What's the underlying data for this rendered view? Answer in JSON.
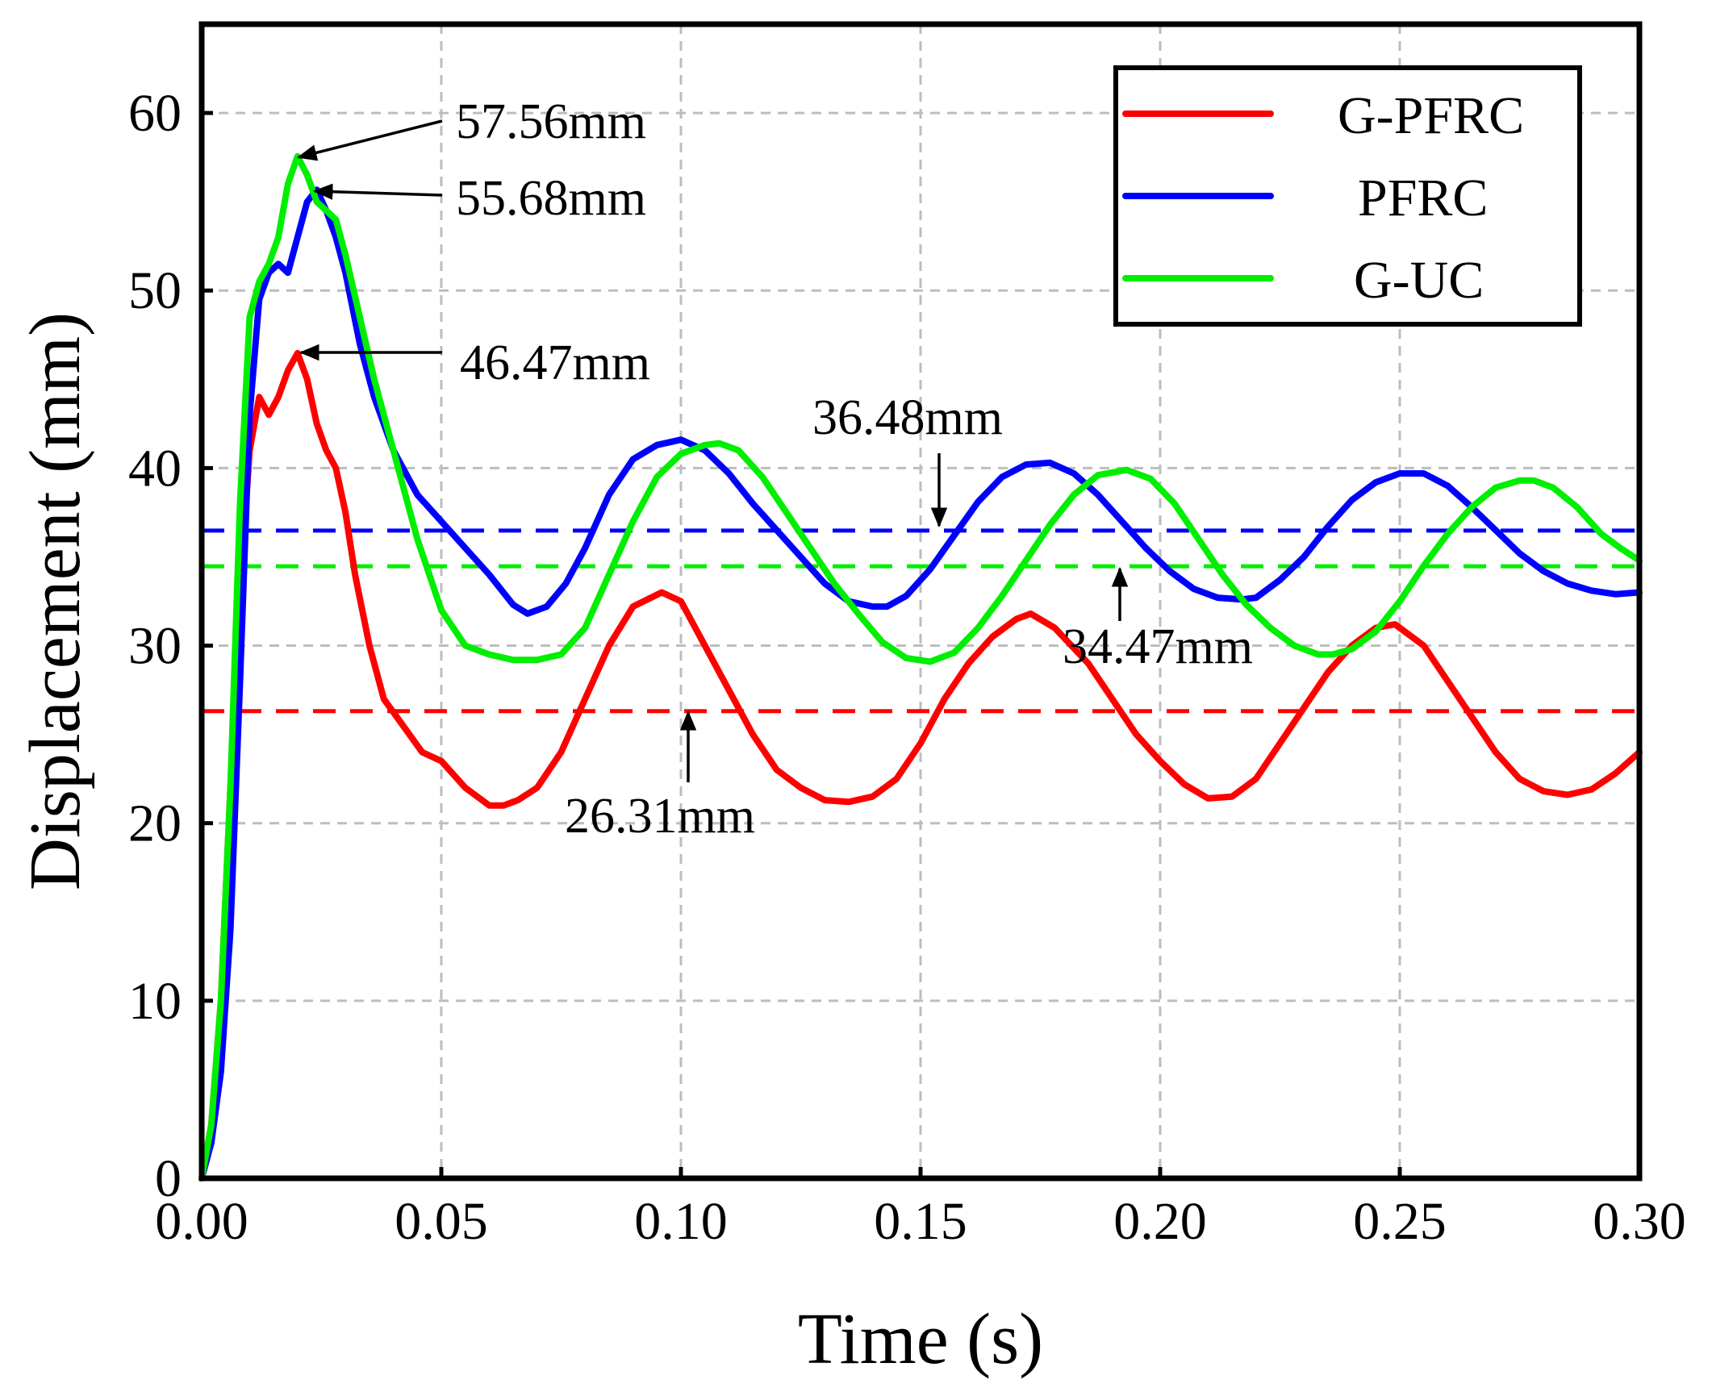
{
  "chart_data": {
    "type": "line",
    "xlabel": "Time (s)",
    "ylabel": "Displacement (mm)",
    "xlim": [
      0,
      0.3
    ],
    "ylim": [
      0,
      65
    ],
    "xticks": [
      0,
      0.05,
      0.1,
      0.15,
      0.2,
      0.25,
      0.3
    ],
    "xtick_labels": [
      "0.00",
      "0.05",
      "0.10",
      "0.15",
      "0.20",
      "0.25",
      "0.30"
    ],
    "yticks": [
      0,
      10,
      20,
      30,
      40,
      50,
      60
    ],
    "ytick_labels": [
      "0",
      "10",
      "20",
      "30",
      "40",
      "50",
      "60"
    ],
    "grid": true,
    "legend_position": "top-right",
    "series": [
      {
        "name": "G-PFRC",
        "color": "#ff0000",
        "x": [
          0,
          0.002,
          0.004,
          0.006,
          0.008,
          0.01,
          0.012,
          0.014,
          0.016,
          0.018,
          0.02,
          0.022,
          0.024,
          0.026,
          0.028,
          0.03,
          0.032,
          0.035,
          0.038,
          0.042,
          0.046,
          0.05,
          0.055,
          0.06,
          0.063,
          0.066,
          0.07,
          0.075,
          0.08,
          0.085,
          0.09,
          0.096,
          0.1,
          0.105,
          0.11,
          0.115,
          0.12,
          0.125,
          0.13,
          0.135,
          0.14,
          0.145,
          0.15,
          0.155,
          0.16,
          0.165,
          0.17,
          0.173,
          0.178,
          0.185,
          0.19,
          0.195,
          0.2,
          0.205,
          0.21,
          0.215,
          0.22,
          0.225,
          0.23,
          0.235,
          0.24,
          0.245,
          0.249,
          0.255,
          0.26,
          0.265,
          0.27,
          0.275,
          0.28,
          0.285,
          0.29,
          0.295,
          0.3
        ],
        "y": [
          0,
          3,
          10,
          22,
          33,
          41,
          44,
          43,
          44,
          45.5,
          46.47,
          45,
          42.5,
          41,
          40,
          37.5,
          34,
          30,
          27,
          25.5,
          24,
          23.5,
          22,
          21,
          21,
          21.3,
          22,
          24,
          27,
          30,
          32.2,
          33,
          32.5,
          30,
          27.5,
          25,
          23,
          22,
          21.3,
          21.2,
          21.5,
          22.5,
          24.5,
          27,
          29,
          30.5,
          31.5,
          31.8,
          31,
          29,
          27,
          25,
          23.5,
          22.2,
          21.4,
          21.5,
          22.5,
          24.5,
          26.5,
          28.5,
          30,
          31,
          31.2,
          30,
          28,
          26,
          24,
          22.5,
          21.8,
          21.6,
          21.9,
          22.8,
          24
        ]
      },
      {
        "name": "PFRC",
        "color": "#0000ff",
        "x": [
          0,
          0.002,
          0.004,
          0.006,
          0.008,
          0.01,
          0.012,
          0.014,
          0.016,
          0.018,
          0.02,
          0.022,
          0.024,
          0.026,
          0.028,
          0.03,
          0.033,
          0.036,
          0.04,
          0.045,
          0.05,
          0.055,
          0.06,
          0.065,
          0.068,
          0.072,
          0.076,
          0.08,
          0.085,
          0.09,
          0.095,
          0.1,
          0.105,
          0.11,
          0.115,
          0.12,
          0.125,
          0.13,
          0.135,
          0.14,
          0.143,
          0.147,
          0.152,
          0.157,
          0.162,
          0.167,
          0.172,
          0.177,
          0.182,
          0.187,
          0.192,
          0.197,
          0.202,
          0.207,
          0.212,
          0.217,
          0.22,
          0.225,
          0.23,
          0.235,
          0.24,
          0.245,
          0.25,
          0.255,
          0.26,
          0.265,
          0.27,
          0.275,
          0.28,
          0.285,
          0.29,
          0.295,
          0.3
        ],
        "y": [
          0,
          2,
          6,
          14,
          28,
          43,
          49.5,
          51,
          51.5,
          51,
          53,
          55,
          55.68,
          54.5,
          53,
          51,
          47,
          44,
          41,
          38.5,
          37,
          35.5,
          34,
          32.3,
          31.8,
          32.2,
          33.5,
          35.5,
          38.5,
          40.5,
          41.3,
          41.6,
          41,
          39.7,
          38,
          36.5,
          35,
          33.5,
          32.5,
          32.2,
          32.2,
          32.8,
          34.3,
          36.2,
          38.1,
          39.5,
          40.2,
          40.3,
          39.7,
          38.5,
          37,
          35.5,
          34.2,
          33.2,
          32.7,
          32.6,
          32.7,
          33.7,
          35,
          36.7,
          38.2,
          39.2,
          39.7,
          39.7,
          39,
          37.8,
          36.5,
          35.2,
          34.2,
          33.5,
          33.1,
          32.9,
          33
        ]
      },
      {
        "name": "G-UC",
        "color": "#00ee00",
        "x": [
          0,
          0.002,
          0.004,
          0.006,
          0.008,
          0.01,
          0.012,
          0.014,
          0.016,
          0.018,
          0.02,
          0.022,
          0.024,
          0.026,
          0.028,
          0.03,
          0.033,
          0.036,
          0.04,
          0.045,
          0.05,
          0.055,
          0.06,
          0.065,
          0.07,
          0.075,
          0.08,
          0.085,
          0.09,
          0.095,
          0.1,
          0.105,
          0.108,
          0.112,
          0.117,
          0.122,
          0.127,
          0.132,
          0.137,
          0.142,
          0.147,
          0.152,
          0.157,
          0.162,
          0.167,
          0.172,
          0.177,
          0.182,
          0.187,
          0.193,
          0.198,
          0.203,
          0.208,
          0.213,
          0.218,
          0.223,
          0.228,
          0.233,
          0.236,
          0.24,
          0.245,
          0.25,
          0.255,
          0.26,
          0.265,
          0.27,
          0.275,
          0.278,
          0.282,
          0.287,
          0.292,
          0.296,
          0.3
        ],
        "y": [
          0,
          3,
          10,
          22,
          38,
          48.5,
          50.5,
          51.5,
          53,
          56,
          57.56,
          56.5,
          55,
          54.5,
          54,
          52,
          48.5,
          45,
          41,
          36,
          32,
          30,
          29.5,
          29.2,
          29.2,
          29.5,
          31,
          34,
          37,
          39.5,
          40.8,
          41.3,
          41.4,
          41,
          39.5,
          37.5,
          35.5,
          33.5,
          31.8,
          30.2,
          29.3,
          29.1,
          29.6,
          31,
          32.8,
          34.8,
          36.8,
          38.5,
          39.6,
          39.9,
          39.4,
          38,
          36,
          34,
          32.3,
          31,
          30,
          29.5,
          29.5,
          29.8,
          30.8,
          32.5,
          34.5,
          36.3,
          37.8,
          38.9,
          39.3,
          39.3,
          38.9,
          37.8,
          36.3,
          35.5,
          34.8
        ]
      }
    ],
    "mean_lines": [
      {
        "series": "G-PFRC",
        "value": 26.31,
        "color": "#ff0000"
      },
      {
        "series": "PFRC",
        "value": 36.48,
        "color": "#0000ff"
      },
      {
        "series": "G-UC",
        "value": 34.47,
        "color": "#00ee00"
      }
    ],
    "annotations": [
      {
        "text": "57.56mm",
        "x": 0.02,
        "y": 57.56
      },
      {
        "text": "55.68mm",
        "x": 0.024,
        "y": 55.68
      },
      {
        "text": "46.47mm",
        "x": 0.02,
        "y": 46.47
      },
      {
        "text": "36.48mm",
        "x": 0.155,
        "y": 36.48
      },
      {
        "text": "34.47mm",
        "x": 0.192,
        "y": 34.47
      },
      {
        "text": "26.31mm",
        "x": 0.1,
        "y": 26.31
      }
    ]
  }
}
